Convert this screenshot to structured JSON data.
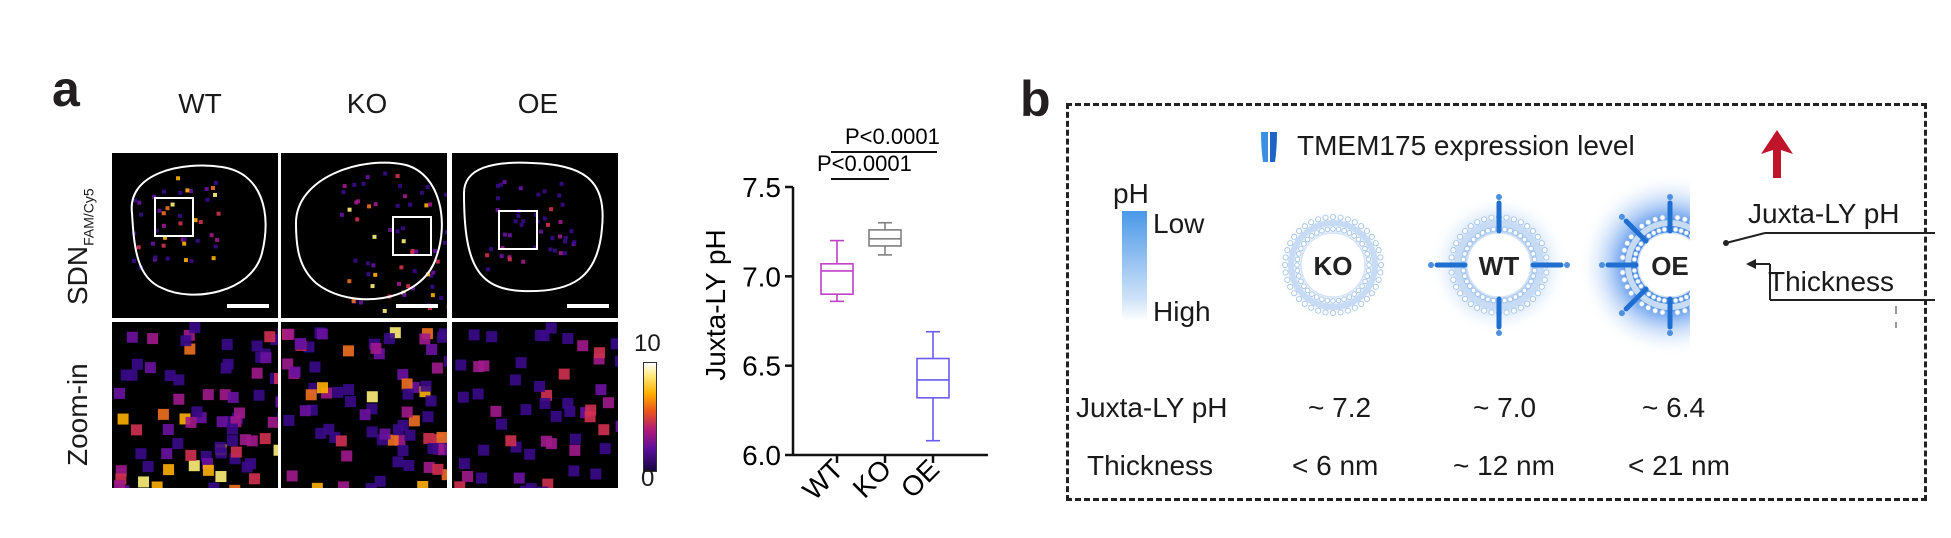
{
  "panel_a": {
    "letter": "a",
    "columns": [
      "WT",
      "KO",
      "OE"
    ],
    "row_labels": {
      "top_main": "SDN",
      "top_sub": "FAM/Cy5",
      "bottom": "Zoom-in"
    },
    "colorbar": {
      "max": "10",
      "min": "0"
    }
  },
  "chart_data": {
    "type": "box",
    "categories": [
      "WT",
      "KO",
      "OE"
    ],
    "ylabel": "Juxta-LY pH",
    "ylim": [
      6.0,
      7.5
    ],
    "yticks": [
      "6.0",
      "6.5",
      "7.0",
      "7.5"
    ],
    "boxes": [
      {
        "category": "WT",
        "min": 6.86,
        "q1": 6.9,
        "median": 7.03,
        "q3": 7.07,
        "max": 7.2,
        "color": "#c040c8"
      },
      {
        "category": "KO",
        "min": 7.12,
        "q1": 7.17,
        "median": 7.21,
        "q3": 7.26,
        "max": 7.3,
        "color": "#808080"
      },
      {
        "category": "OE",
        "min": 6.08,
        "q1": 6.32,
        "median": 6.42,
        "q3": 6.54,
        "max": 6.69,
        "color": "#6a5cf0"
      }
    ],
    "annotations": [
      {
        "text": "P<0.0001",
        "from": "WT",
        "to": "KO"
      },
      {
        "text": "P<0.0001",
        "from": "WT",
        "to": "OE"
      }
    ]
  },
  "panel_b": {
    "letter": "b",
    "legend_label": "TMEM175 expression level",
    "ph_scale": {
      "title": "pH",
      "low": "Low",
      "high": "High"
    },
    "vesicles": [
      "KO",
      "WT",
      "OE"
    ],
    "callouts": {
      "ph": "Juxta-LY pH",
      "thickness": "Thickness"
    },
    "table": {
      "row1_label": "Juxta-LY pH",
      "row1_values": [
        "~ 7.2",
        "~ 7.0",
        "~ 6.4"
      ],
      "row2_label": "Thickness",
      "row2_values": [
        "< 6 nm",
        "~ 12 nm",
        "< 21 nm"
      ]
    },
    "colors": {
      "arrow": "#c0142b",
      "glow": "#2f7be8",
      "channel": "#1e6fd0"
    }
  }
}
